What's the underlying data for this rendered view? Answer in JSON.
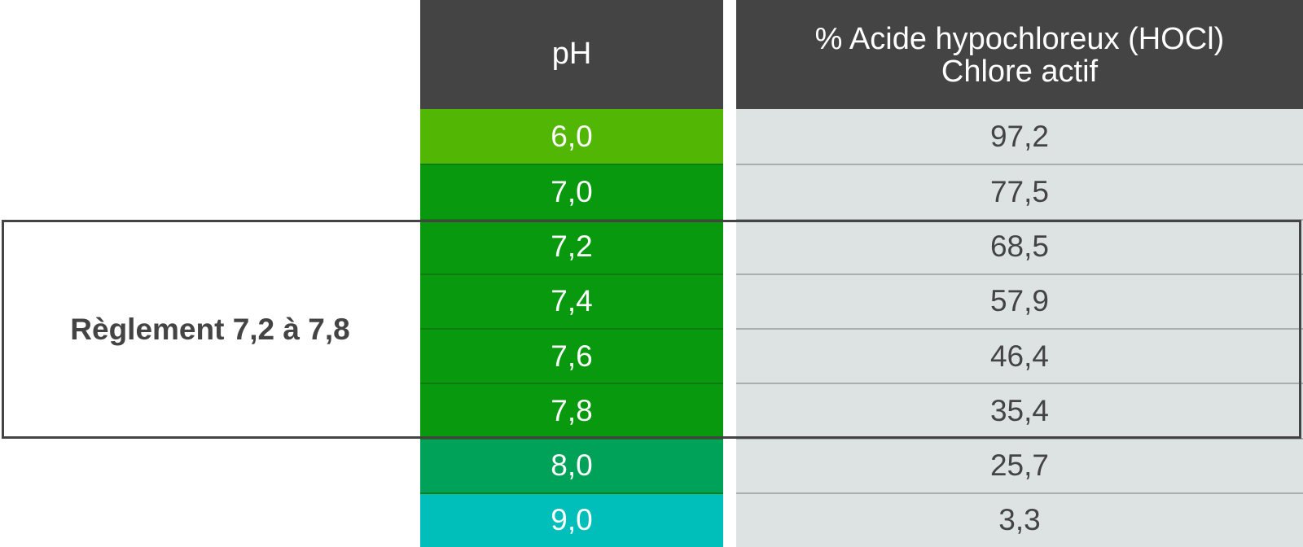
{
  "table": {
    "headers": {
      "ph": "pH",
      "percent_line1": "% Acide hypochloreux (HOCl)",
      "percent_line2": "Chlore actif"
    },
    "rows": [
      {
        "ph": "6,0",
        "percent": "97,2",
        "color": "#52b604"
      },
      {
        "ph": "7,0",
        "percent": "77,5",
        "color": "#09990f"
      },
      {
        "ph": "7,2",
        "percent": "68,5",
        "color": "#09990f"
      },
      {
        "ph": "7,4",
        "percent": "57,9",
        "color": "#09990f"
      },
      {
        "ph": "7,6",
        "percent": "46,4",
        "color": "#09990f"
      },
      {
        "ph": "7,8",
        "percent": "35,4",
        "color": "#09990f"
      },
      {
        "ph": "8,0",
        "percent": "25,7",
        "color": "#00a159"
      },
      {
        "ph": "9,0",
        "percent": "3,3",
        "color": "#00bfbb"
      }
    ],
    "range_label": "Règlement 7,2 à 7,8"
  },
  "colors": {
    "header_bg": "#444444",
    "value_bg": "#dde3e3",
    "text_dark": "#444444"
  }
}
